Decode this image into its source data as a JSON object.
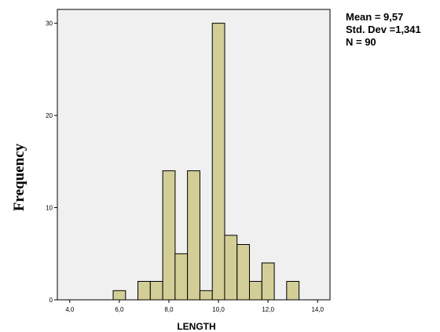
{
  "chart_data": {
    "type": "bar",
    "subtype": "histogram",
    "xlabel": "LENGTH",
    "ylabel": "Frequency",
    "xlim": [
      3.5,
      14.5
    ],
    "ylim": [
      0,
      31.5
    ],
    "x_ticks": [
      "4,0",
      "6,0",
      "8,0",
      "10,0",
      "12,0",
      "14,0"
    ],
    "x_tick_values": [
      4,
      6,
      8,
      10,
      12,
      14
    ],
    "y_ticks": [
      "0",
      "10",
      "20",
      "30"
    ],
    "y_tick_values": [
      0,
      10,
      20,
      30
    ],
    "bin_width": 0.5,
    "bins": [
      {
        "start": 5.75,
        "count": 1
      },
      {
        "start": 6.75,
        "count": 2
      },
      {
        "start": 7.25,
        "count": 2
      },
      {
        "start": 7.75,
        "count": 14
      },
      {
        "start": 8.25,
        "count": 5
      },
      {
        "start": 8.75,
        "count": 14
      },
      {
        "start": 9.25,
        "count": 1
      },
      {
        "start": 9.75,
        "count": 30
      },
      {
        "start": 10.25,
        "count": 7
      },
      {
        "start": 10.75,
        "count": 6
      },
      {
        "start": 11.25,
        "count": 2
      },
      {
        "start": 11.75,
        "count": 4
      },
      {
        "start": 12.75,
        "count": 2
      }
    ],
    "bar_color": "#d3ce97",
    "plot_background": "#f0f0f0",
    "grid": false
  },
  "stats": {
    "mean": "Mean = 9,57",
    "std_dev": "Std. Dev =1,341",
    "n": "N = 90"
  }
}
